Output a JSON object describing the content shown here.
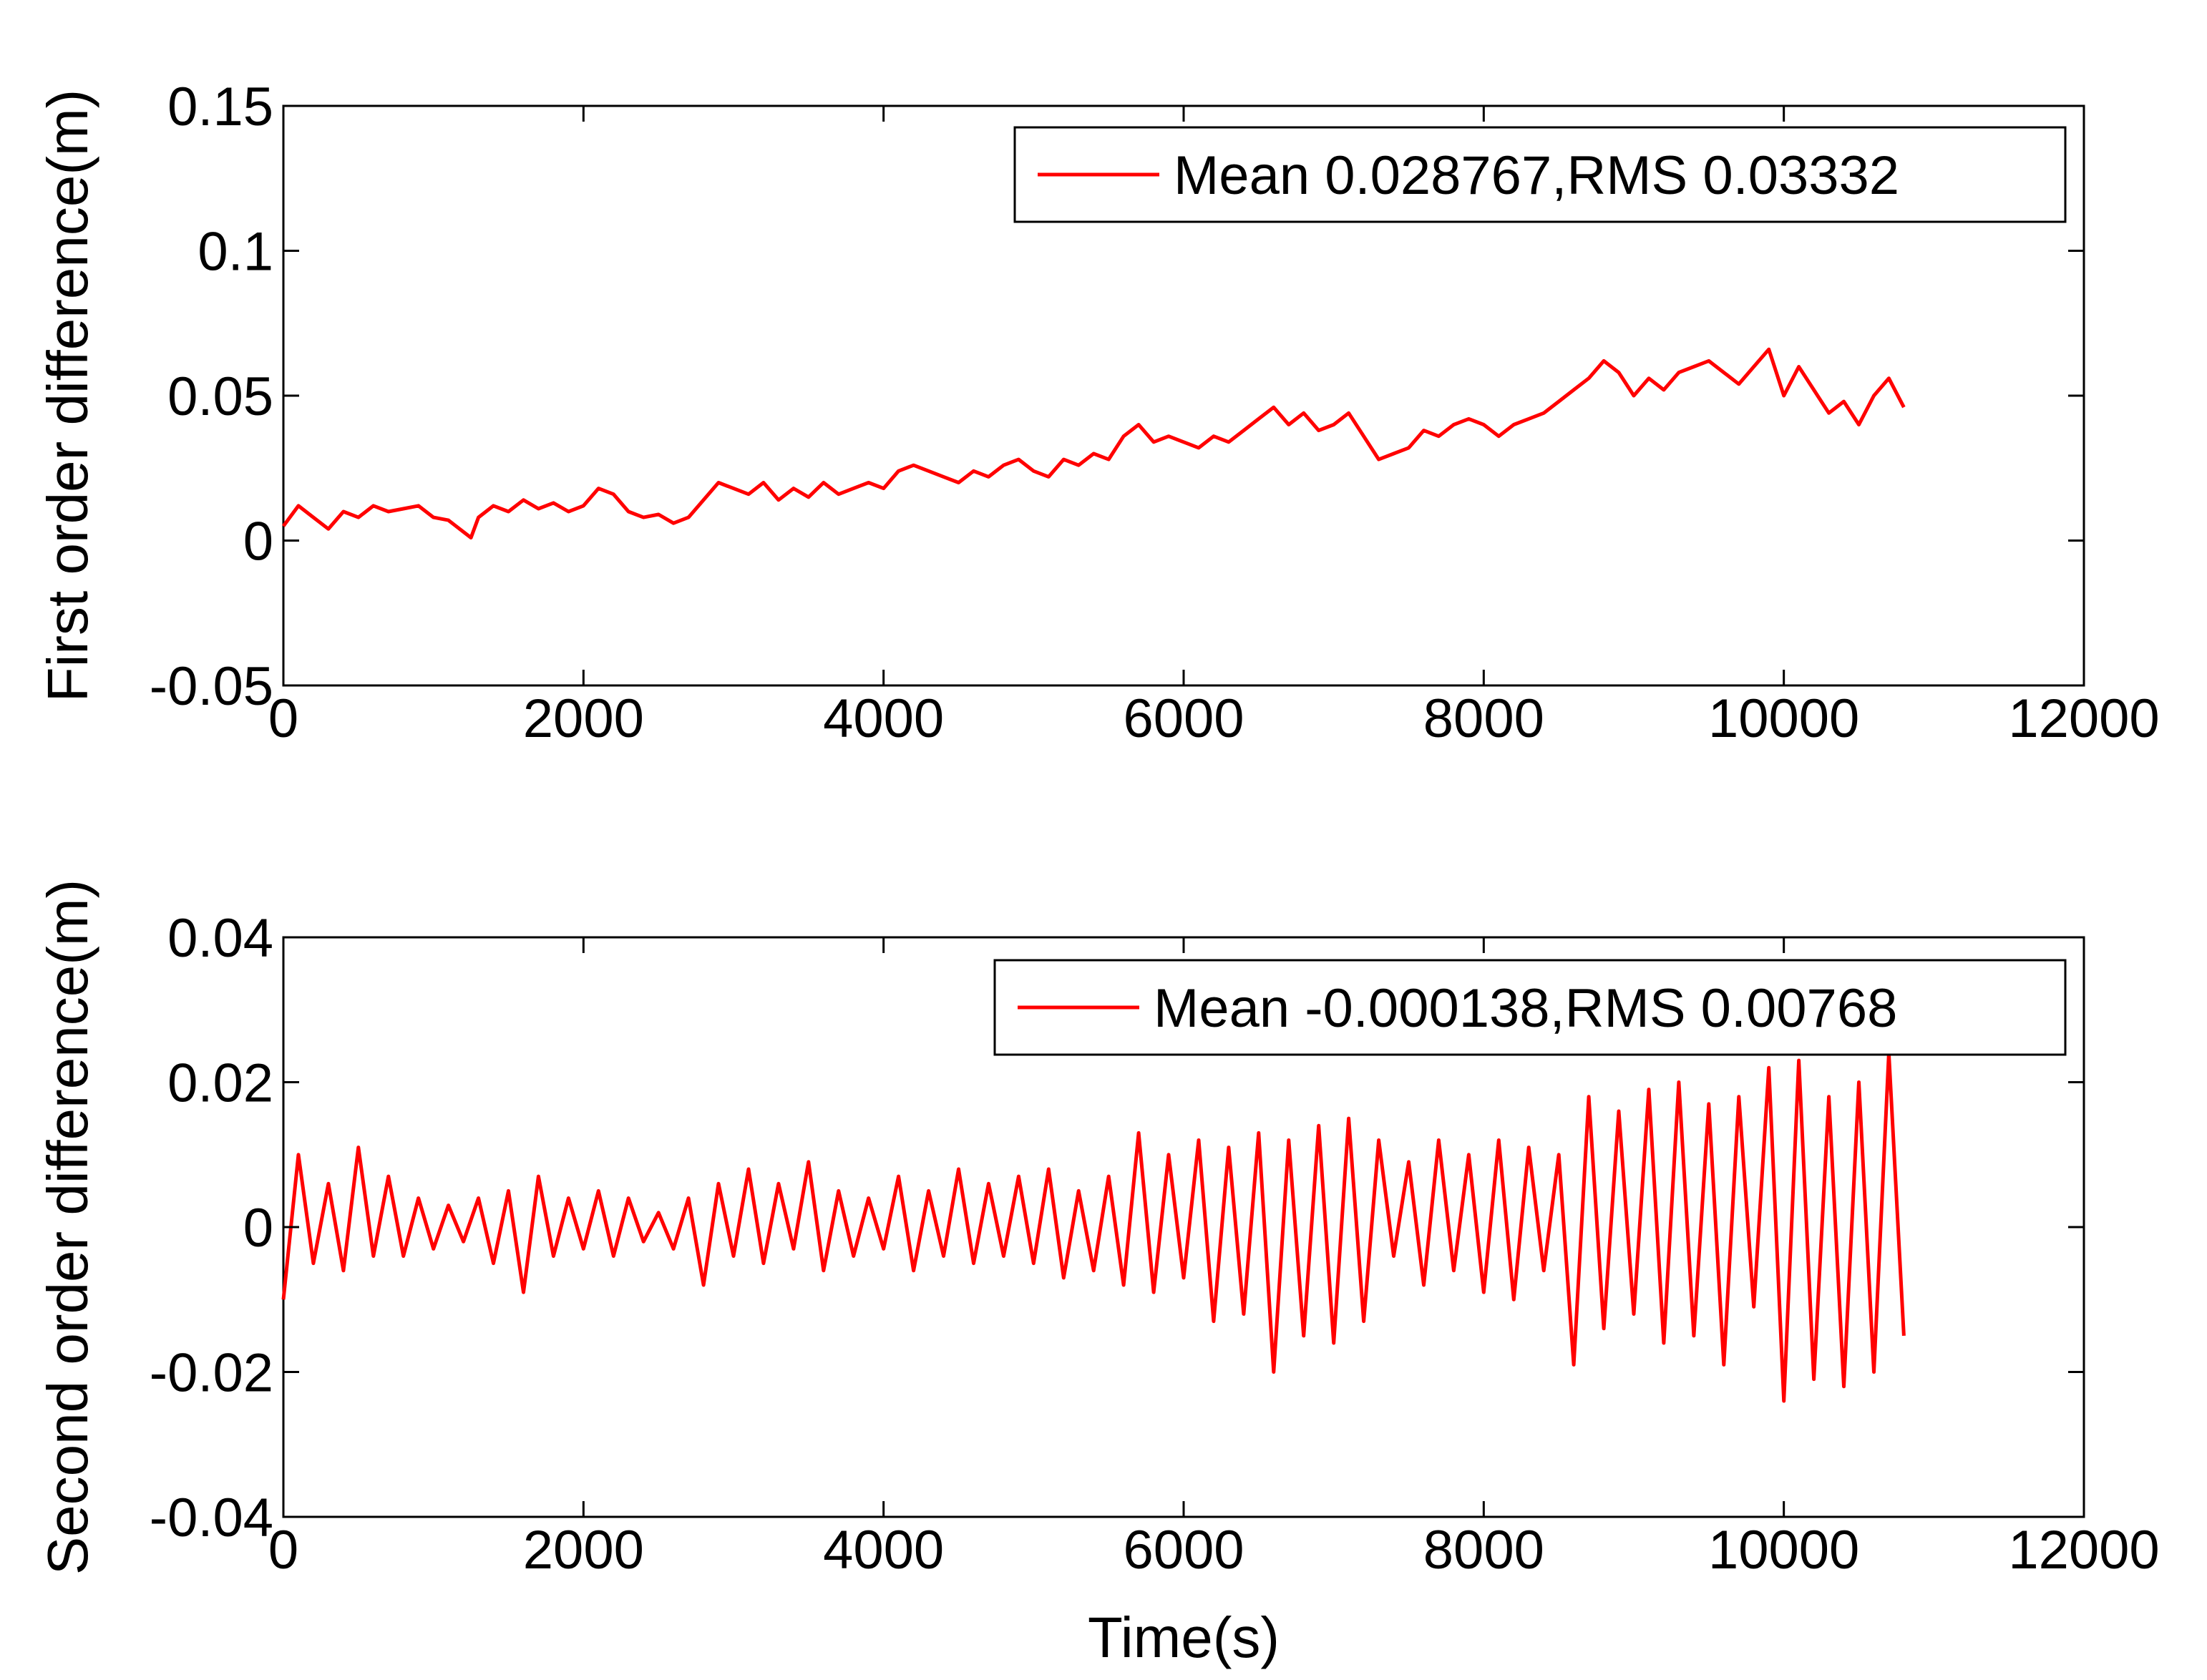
{
  "figure": {
    "background": "#ffffff"
  },
  "chart_data": [
    {
      "type": "line",
      "title": "",
      "xlabel": "",
      "ylabel": "First order difference(m)",
      "xlim": [
        0,
        12000
      ],
      "ylim": [
        -0.05,
        0.15
      ],
      "xticks": [
        0,
        2000,
        4000,
        6000,
        8000,
        10000,
        12000
      ],
      "xtick_labels": [
        "0",
        "2000",
        "4000",
        "6000",
        "8000",
        "10000",
        "12000"
      ],
      "yticks": [
        -0.05,
        0,
        0.05,
        0.1,
        0.15
      ],
      "ytick_labels": [
        "-0.05",
        "0",
        "0.05",
        "0.1",
        "0.15"
      ],
      "grid": false,
      "legend_position": "top-right",
      "series": [
        {
          "name": "Mean 0.028767,RMS 0.03332",
          "color": "#ff0000",
          "x": [
            0,
            100,
            200,
            300,
            400,
            500,
            600,
            700,
            800,
            900,
            1000,
            1100,
            1200,
            1250,
            1300,
            1400,
            1500,
            1600,
            1700,
            1800,
            1900,
            2000,
            2100,
            2200,
            2300,
            2400,
            2500,
            2600,
            2700,
            2800,
            2900,
            3000,
            3100,
            3200,
            3300,
            3400,
            3500,
            3600,
            3700,
            3800,
            3900,
            4000,
            4100,
            4200,
            4300,
            4400,
            4500,
            4600,
            4700,
            4800,
            4900,
            5000,
            5100,
            5200,
            5300,
            5400,
            5500,
            5600,
            5700,
            5800,
            5900,
            6000,
            6100,
            6200,
            6300,
            6400,
            6500,
            6600,
            6700,
            6800,
            6900,
            7000,
            7100,
            7200,
            7300,
            7400,
            7500,
            7600,
            7700,
            7800,
            7900,
            8000,
            8100,
            8200,
            8300,
            8400,
            8500,
            8600,
            8700,
            8800,
            8900,
            9000,
            9100,
            9200,
            9300,
            9400,
            9500,
            9600,
            9700,
            9800,
            9900,
            10000,
            10100,
            10200,
            10300,
            10400,
            10500,
            10600,
            10700,
            10800
          ],
          "y": [
            0.005,
            0.012,
            0.008,
            0.004,
            0.01,
            0.008,
            0.012,
            0.01,
            0.011,
            0.012,
            0.008,
            0.007,
            0.003,
            0.001,
            0.008,
            0.012,
            0.01,
            0.014,
            0.011,
            0.013,
            0.01,
            0.012,
            0.018,
            0.016,
            0.01,
            0.008,
            0.009,
            0.006,
            0.008,
            0.014,
            0.02,
            0.018,
            0.016,
            0.02,
            0.014,
            0.018,
            0.015,
            0.02,
            0.016,
            0.018,
            0.02,
            0.018,
            0.024,
            0.026,
            0.024,
            0.022,
            0.02,
            0.024,
            0.022,
            0.026,
            0.028,
            0.024,
            0.022,
            0.028,
            0.026,
            0.03,
            0.028,
            0.036,
            0.04,
            0.034,
            0.036,
            0.034,
            0.032,
            0.036,
            0.034,
            0.038,
            0.042,
            0.046,
            0.04,
            0.044,
            0.038,
            0.04,
            0.044,
            0.036,
            0.028,
            0.03,
            0.032,
            0.038,
            0.036,
            0.04,
            0.042,
            0.04,
            0.036,
            0.04,
            0.042,
            0.044,
            0.048,
            0.052,
            0.056,
            0.062,
            0.058,
            0.05,
            0.056,
            0.052,
            0.058,
            0.06,
            0.062,
            0.058,
            0.054,
            0.06,
            0.066,
            0.05,
            0.06,
            0.052,
            0.044,
            0.048,
            0.04,
            0.05,
            0.056,
            0.046
          ]
        }
      ]
    },
    {
      "type": "line",
      "title": "",
      "xlabel": "Time(s)",
      "ylabel": "Second order difference(m)",
      "xlim": [
        0,
        12000
      ],
      "ylim": [
        -0.04,
        0.04
      ],
      "xticks": [
        0,
        2000,
        4000,
        6000,
        8000,
        10000,
        12000
      ],
      "xtick_labels": [
        "0",
        "2000",
        "4000",
        "6000",
        "8000",
        "10000",
        "12000"
      ],
      "yticks": [
        -0.04,
        -0.02,
        0,
        0.02,
        0.04
      ],
      "ytick_labels": [
        "-0.04",
        "-0.02",
        "0",
        "0.02",
        "0.04"
      ],
      "grid": false,
      "legend_position": "top-right",
      "series": [
        {
          "name": "Mean -0.000138,RMS 0.00768",
          "color": "#ff0000",
          "x": [
            0,
            100,
            200,
            300,
            400,
            500,
            600,
            700,
            800,
            900,
            1000,
            1100,
            1200,
            1300,
            1400,
            1500,
            1600,
            1700,
            1800,
            1900,
            2000,
            2100,
            2200,
            2300,
            2400,
            2500,
            2600,
            2700,
            2800,
            2900,
            3000,
            3100,
            3200,
            3300,
            3400,
            3500,
            3600,
            3700,
            3800,
            3900,
            4000,
            4100,
            4200,
            4300,
            4400,
            4500,
            4600,
            4700,
            4800,
            4900,
            5000,
            5100,
            5200,
            5300,
            5400,
            5500,
            5600,
            5700,
            5800,
            5900,
            6000,
            6100,
            6200,
            6300,
            6400,
            6500,
            6600,
            6700,
            6800,
            6900,
            7000,
            7100,
            7200,
            7300,
            7400,
            7500,
            7600,
            7700,
            7800,
            7900,
            8000,
            8100,
            8200,
            8300,
            8400,
            8500,
            8600,
            8700,
            8800,
            8900,
            9000,
            9100,
            9200,
            9300,
            9400,
            9500,
            9600,
            9700,
            9800,
            9900,
            10000,
            10100,
            10200,
            10300,
            10400,
            10500,
            10600,
            10700,
            10800
          ],
          "y": [
            -0.01,
            0.01,
            -0.005,
            0.006,
            -0.006,
            0.011,
            -0.004,
            0.007,
            -0.004,
            0.004,
            -0.003,
            0.003,
            -0.002,
            0.004,
            -0.005,
            0.005,
            -0.009,
            0.007,
            -0.004,
            0.004,
            -0.003,
            0.005,
            -0.004,
            0.004,
            -0.002,
            0.002,
            -0.003,
            0.004,
            -0.008,
            0.006,
            -0.004,
            0.008,
            -0.005,
            0.006,
            -0.003,
            0.009,
            -0.006,
            0.005,
            -0.004,
            0.004,
            -0.003,
            0.007,
            -0.006,
            0.005,
            -0.004,
            0.008,
            -0.005,
            0.006,
            -0.004,
            0.007,
            -0.005,
            0.008,
            -0.007,
            0.005,
            -0.006,
            0.007,
            -0.008,
            0.013,
            -0.009,
            0.01,
            -0.007,
            0.012,
            -0.013,
            0.011,
            -0.012,
            0.013,
            -0.02,
            0.012,
            -0.015,
            0.014,
            -0.016,
            0.015,
            -0.013,
            0.012,
            -0.004,
            0.009,
            -0.008,
            0.012,
            -0.006,
            0.01,
            -0.009,
            0.012,
            -0.01,
            0.011,
            -0.006,
            0.01,
            -0.019,
            0.018,
            -0.014,
            0.016,
            -0.012,
            0.019,
            -0.016,
            0.02,
            -0.015,
            0.017,
            -0.019,
            0.018,
            -0.011,
            0.022,
            -0.024,
            0.023,
            -0.021,
            0.018,
            -0.022,
            0.02,
            -0.02,
            0.024,
            -0.015
          ]
        }
      ]
    }
  ]
}
